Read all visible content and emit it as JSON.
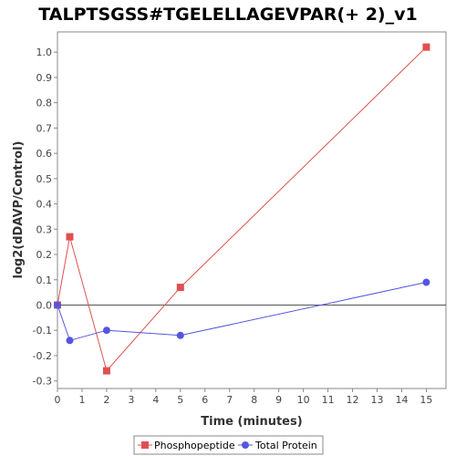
{
  "chart_data": {
    "type": "line",
    "title": "TALPTSGSS#TGELELLAGEVPAR(+ 2)_v1",
    "xlabel": "Time (minutes)",
    "ylabel": "log2(dDAVP/Control)",
    "xlim": [
      0,
      15.8
    ],
    "ylim": [
      -0.33,
      1.08
    ],
    "xticks": [
      0,
      1,
      2,
      3,
      4,
      5,
      6,
      7,
      8,
      9,
      10,
      11,
      12,
      13,
      14,
      15
    ],
    "yticks": [
      -0.3,
      -0.2,
      -0.1,
      0.0,
      0.1,
      0.2,
      0.3,
      0.4,
      0.5,
      0.6,
      0.7,
      0.8,
      0.9,
      1.0
    ],
    "ytick_labels": [
      "-0.3",
      "-0.2",
      "-0.1",
      "0.0",
      "0.1",
      "0.2",
      "0.3",
      "0.4",
      "0.5",
      "0.6",
      "0.7",
      "0.8",
      "0.9",
      "1.0"
    ],
    "grid": false,
    "legend_position": "bottom-center",
    "zero_line": true,
    "series": [
      {
        "name": "Phosphopeptide",
        "color": "#e05050",
        "marker": "square",
        "x": [
          0,
          0.5,
          2,
          5,
          15
        ],
        "y": [
          0.0,
          0.27,
          -0.26,
          0.07,
          1.02
        ]
      },
      {
        "name": "Total Protein",
        "color": "#5555e0",
        "marker": "circle",
        "x": [
          0,
          0.5,
          2,
          5,
          15
        ],
        "y": [
          0.0,
          -0.14,
          -0.1,
          -0.12,
          0.09
        ]
      }
    ]
  }
}
